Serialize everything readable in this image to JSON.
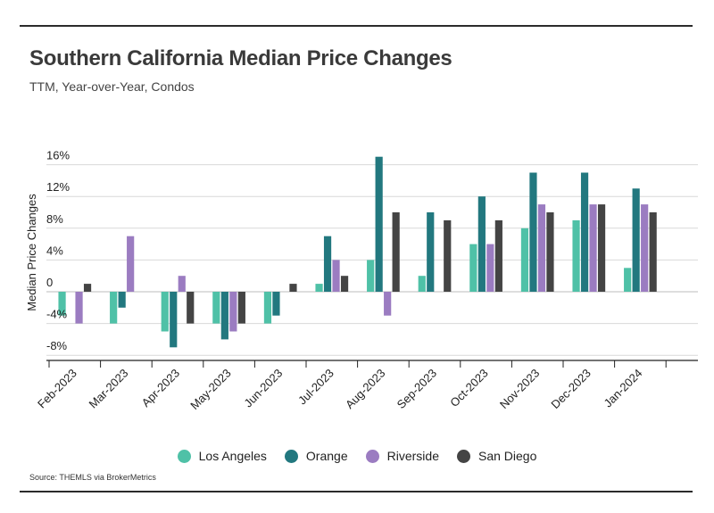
{
  "header": {
    "title": "Southern California Median Price Changes",
    "subtitle": "TTM, Year-over-Year, Condos"
  },
  "footer": {
    "source": "Source:  THEMLS via BrokerMetrics"
  },
  "chart_data": {
    "type": "bar",
    "title": "Southern California Median Price Changes",
    "subtitle": "TTM, Year-over-Year, Condos",
    "xlabel": "",
    "ylabel": "Median Price Changes",
    "ylim": [
      -9,
      17
    ],
    "y_ticks": [
      -8,
      -4,
      0,
      4,
      8,
      12,
      16
    ],
    "y_tick_labels": [
      "-8%",
      "-4%",
      "0",
      "4%",
      "8%",
      "12%",
      "16%"
    ],
    "grid": true,
    "legend_position": "bottom",
    "categories": [
      "Feb-2023",
      "Mar-2023",
      "Apr-2023",
      "May-2023",
      "Jun-2023",
      "Jul-2023",
      "Aug-2023",
      "Sep-2023",
      "Oct-2023",
      "Nov-2023",
      "Dec-2023",
      "Jan-2024"
    ],
    "series": [
      {
        "name": "Los Angeles",
        "color": "#4fc1a7",
        "values": [
          -3,
          -4,
          -5,
          -4,
          -4,
          1,
          4,
          2,
          6,
          8,
          9,
          3
        ]
      },
      {
        "name": "Orange",
        "color": "#22787f",
        "values": [
          0,
          -2,
          -7,
          -6,
          -3,
          7,
          17,
          10,
          12,
          15,
          15,
          13
        ]
      },
      {
        "name": "Riverside",
        "color": "#9b7cc1",
        "values": [
          -4,
          7,
          2,
          -5,
          0,
          4,
          -3,
          0,
          6,
          11,
          11,
          11
        ]
      },
      {
        "name": "San Diego",
        "color": "#444444",
        "values": [
          1,
          0,
          -4,
          -4,
          1,
          2,
          10,
          9,
          9,
          10,
          11,
          10
        ]
      }
    ]
  }
}
